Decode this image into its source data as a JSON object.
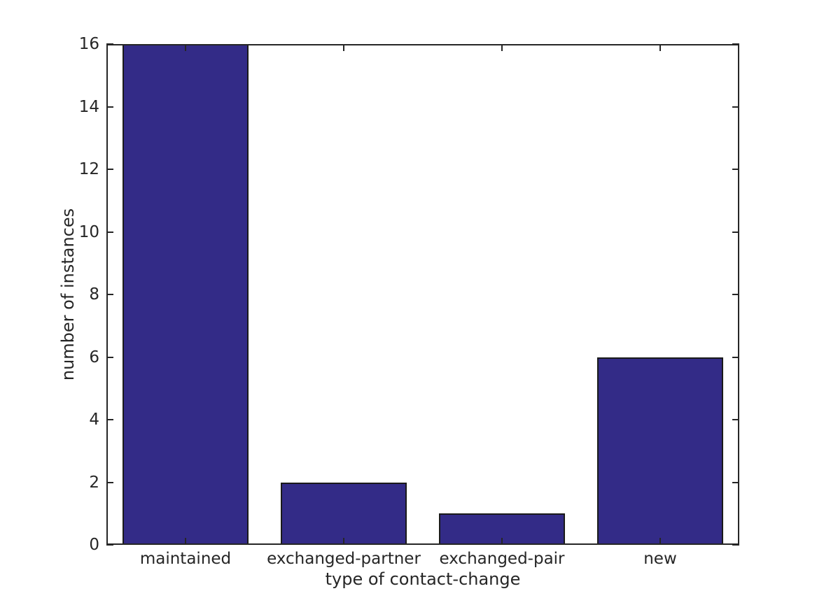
{
  "chart_data": {
    "type": "bar",
    "categories": [
      "maintained",
      "exchanged-partner",
      "exchanged-pair",
      "new"
    ],
    "values": [
      16,
      2,
      1,
      6
    ],
    "title": "",
    "xlabel": "type of contact-change",
    "ylabel": "number of instances",
    "ylim": [
      0,
      16
    ],
    "yticks": [
      0,
      2,
      4,
      6,
      8,
      10,
      12,
      14,
      16
    ],
    "bar_width_fraction": 0.8,
    "grid": false,
    "legend": null,
    "layout_hints": {
      "box": true,
      "ticks_direction": "in",
      "ticks_mirrored": true
    },
    "colors": {
      "bar_fill": "#332B87",
      "bar_edge": "#1a1a1a",
      "axis": "#262626",
      "text": "#262626",
      "background": "#ffffff"
    }
  }
}
